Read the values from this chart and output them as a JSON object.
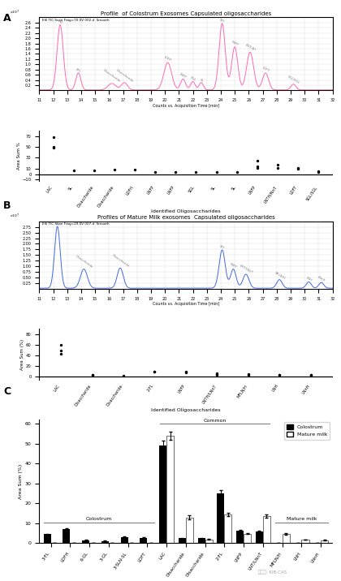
{
  "panel_A_title": "Profile  of Colostrum Exosomes Capsulated oligosaccharides",
  "panel_B_title": "Profiles of Mature Milk exosomes  Capsulated oligosaccharides",
  "chromatogram_xlabel": "Counts vs. Acquisition Time [min]",
  "chromatogram_A_label": "ESI TIC Scan Frag=70.0V 002.d  Smooth",
  "chromatogram_B_label": "ESI TIC Scan Frag=29.0V 007.d  Smooth",
  "scatter_xlabel": "Identified Oligosaccharides",
  "scatter_A_ylabel": "Area Sum %",
  "scatter_B_ylabel": "Area Sum (%)",
  "bar_ylabel": "Area Sum (%)",
  "scat_A_labels": [
    "LAC",
    "SL",
    "Disaccharide",
    "Disaccharide",
    "LDFH",
    "LNFP",
    "LNFP",
    "SGL",
    "SL",
    "SL",
    "LNFP",
    "LNTH/NnT",
    "LDFT",
    "SGL/SGL"
  ],
  "scat_B_labels": [
    "LAC",
    "Disaccharide",
    "Disaccharide",
    "2-FL",
    "LNFP",
    "LNTH/LNnT",
    "MFLN/H",
    "LNH",
    "LNnH"
  ],
  "bar_categories": [
    "3-FL",
    "LDFH",
    "6-GL",
    "3-GL",
    "3-SLN-SL",
    "LDFT",
    "LAC",
    "Disaccharide",
    "Disaccharide",
    "2-FL",
    "LNFP",
    "LNT/LNnT",
    "MFLN/H",
    "LNH",
    "LNnH"
  ],
  "colostrum_values": [
    4.5,
    7.0,
    1.6,
    1.1,
    3.2,
    2.7,
    49.0,
    2.5,
    2.5,
    25.0,
    6.3,
    6.0,
    0.0,
    0.0,
    0.0
  ],
  "mature_values": [
    0.0,
    0.0,
    0.0,
    0.0,
    0.0,
    0.0,
    54.0,
    13.0,
    2.0,
    14.5,
    4.8,
    13.5,
    4.5,
    1.8,
    1.5
  ],
  "colostrum_err": [
    0.3,
    0.4,
    0.2,
    0.15,
    0.3,
    0.2,
    2.5,
    0.2,
    0.2,
    1.5,
    0.4,
    0.4,
    0.0,
    0.0,
    0.0
  ],
  "mature_err": [
    0.0,
    0.0,
    0.0,
    0.0,
    0.0,
    0.0,
    2.0,
    1.0,
    0.2,
    0.8,
    0.3,
    0.8,
    0.4,
    0.15,
    0.2
  ],
  "dot_A": {
    "0": [
      68,
      50,
      48
    ],
    "1": [
      7
    ],
    "2": [
      7
    ],
    "3": [
      8
    ],
    "4": [
      8
    ],
    "5": [
      4
    ],
    "6": [
      4
    ],
    "7": [
      4
    ],
    "8": [
      4
    ],
    "9": [
      4
    ],
    "10": [
      25,
      14,
      11
    ],
    "11": [
      17,
      11
    ],
    "12": [
      11,
      10
    ],
    "13": [
      5,
      4
    ]
  },
  "dot_B": {
    "0": [
      60,
      50,
      44
    ],
    "1": [
      4,
      3
    ],
    "2": [
      2
    ],
    "3": [
      10,
      9
    ],
    "4": [
      10,
      8
    ],
    "5": [
      7,
      5,
      4
    ],
    "6": [
      5,
      4
    ],
    "7": [
      4,
      3
    ],
    "8": [
      4,
      3,
      2
    ]
  },
  "colostrum_color": "#FF69B4",
  "mature_color": "#4169E1",
  "background_color": "#ffffff"
}
